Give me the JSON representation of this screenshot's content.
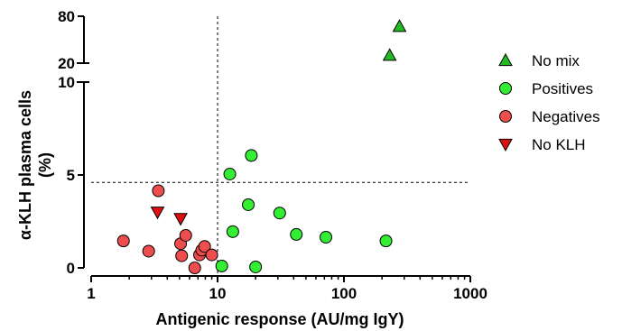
{
  "chart_data": {
    "type": "scatter",
    "xlabel": "Antigenic response (AU/mg IgY)",
    "ylabel_line1": "α-KLH plasma cells",
    "ylabel_line2": "(%)",
    "x_scale": "log",
    "xlim": [
      1,
      1000
    ],
    "x_ticks": [
      {
        "value": 1,
        "label": "1"
      },
      {
        "value": 10,
        "label": "10"
      },
      {
        "value": 100,
        "label": "100"
      },
      {
        "value": 1000,
        "label": "1000"
      }
    ],
    "y_axis_segments": [
      {
        "ylim": [
          0,
          10
        ],
        "ticks": [
          {
            "value": 0,
            "label": "0"
          },
          {
            "value": 5,
            "label": "5"
          },
          {
            "value": 10,
            "label": "10"
          }
        ]
      },
      {
        "ylim": [
          20,
          80
        ],
        "ticks": [
          {
            "value": 20,
            "label": "20"
          },
          {
            "value": 80,
            "label": "80"
          }
        ]
      }
    ],
    "reference_lines": [
      {
        "axis": "x",
        "value": 10,
        "style": "dashed"
      },
      {
        "axis": "y",
        "value": 4.6,
        "style": "dashed"
      }
    ],
    "grid": false,
    "legend_position": "right",
    "series": [
      {
        "name": "No mix",
        "marker": "triangle-up",
        "color": "#22bb22",
        "points": [
          [
            230,
            30
          ],
          [
            275,
            67
          ]
        ]
      },
      {
        "name": "Positives",
        "marker": "circle",
        "color": "#33ee33",
        "points": [
          [
            12.5,
            5.05
          ],
          [
            18.5,
            6.05
          ],
          [
            17.5,
            3.4
          ],
          [
            13.2,
            1.95
          ],
          [
            31,
            2.95
          ],
          [
            42,
            1.8
          ],
          [
            72,
            1.65
          ],
          [
            215,
            1.45
          ],
          [
            10.8,
            0.1
          ],
          [
            20,
            0.05
          ]
        ]
      },
      {
        "name": "Negatives",
        "marker": "circle",
        "color": "#ee4d4d",
        "points": [
          [
            1.8,
            1.45
          ],
          [
            2.85,
            0.9
          ],
          [
            3.4,
            4.15
          ],
          [
            5.1,
            1.3
          ],
          [
            5.2,
            0.65
          ],
          [
            5.6,
            1.75
          ],
          [
            6.6,
            0.0
          ],
          [
            7.2,
            0.7
          ],
          [
            7.5,
            0.95
          ],
          [
            7.9,
            1.15
          ],
          [
            9.0,
            0.7
          ]
        ]
      },
      {
        "name": "No KLH",
        "marker": "triangle-down",
        "color": "#dd1111",
        "points": [
          [
            3.35,
            3.0
          ],
          [
            5.1,
            2.65
          ]
        ]
      }
    ]
  }
}
